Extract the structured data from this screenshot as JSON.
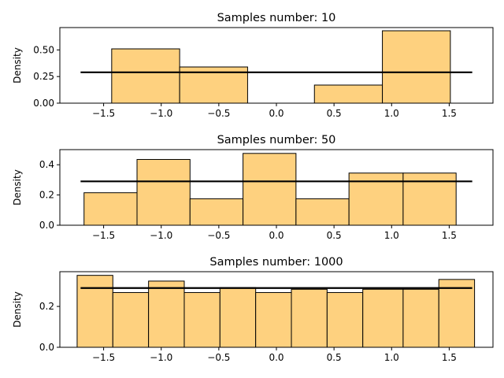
{
  "chart_data": [
    {
      "type": "histogram",
      "title": "Samples number: 10",
      "xlabel": "",
      "ylabel": "Density",
      "xlim": [
        -1.88,
        1.88
      ],
      "ylim": [
        0,
        0.71
      ],
      "xticks": [
        -1.5,
        -1.0,
        -0.5,
        0.0,
        0.5,
        1.0,
        1.5
      ],
      "xtick_labels": [
        "−1.5",
        "−1.0",
        "−0.5",
        "0.0",
        "0.5",
        "1.0",
        "1.5"
      ],
      "yticks": [
        0,
        0.25,
        0.5
      ],
      "ytick_labels": [
        "0.00",
        "0.25",
        "0.50"
      ],
      "bins": [
        {
          "x0": -1.43,
          "x1": -0.84,
          "density": 0.51
        },
        {
          "x0": -0.84,
          "x1": -0.25,
          "density": 0.34
        },
        {
          "x0": -0.25,
          "x1": 0.33,
          "density": 0.0
        },
        {
          "x0": 0.33,
          "x1": 0.92,
          "density": 0.17
        },
        {
          "x0": 0.92,
          "x1": 1.51,
          "density": 0.68
        }
      ],
      "reference_line": {
        "x": [
          -1.7,
          1.7
        ],
        "y": 0.29
      }
    },
    {
      "type": "histogram",
      "title": "Samples number: 50",
      "xlabel": "",
      "ylabel": "Density",
      "xlim": [
        -1.88,
        1.88
      ],
      "ylim": [
        0,
        0.5
      ],
      "xticks": [
        -1.5,
        -1.0,
        -0.5,
        0.0,
        0.5,
        1.0,
        1.5
      ],
      "xtick_labels": [
        "−1.5",
        "−1.0",
        "−0.5",
        "0.0",
        "0.5",
        "1.0",
        "1.5"
      ],
      "yticks": [
        0,
        0.2,
        0.4
      ],
      "ytick_labels": [
        "0.0",
        "0.2",
        "0.4"
      ],
      "bins": [
        {
          "x0": -1.67,
          "x1": -1.21,
          "density": 0.215
        },
        {
          "x0": -1.21,
          "x1": -0.75,
          "density": 0.435
        },
        {
          "x0": -0.75,
          "x1": -0.29,
          "density": 0.175
        },
        {
          "x0": -0.29,
          "x1": 0.17,
          "density": 0.475
        },
        {
          "x0": 0.17,
          "x1": 0.63,
          "density": 0.175
        },
        {
          "x0": 0.63,
          "x1": 1.1,
          "density": 0.345
        },
        {
          "x0": 1.1,
          "x1": 1.56,
          "density": 0.345
        }
      ],
      "reference_line": {
        "x": [
          -1.7,
          1.7
        ],
        "y": 0.29
      }
    },
    {
      "type": "histogram",
      "title": "Samples number: 1000",
      "xlabel": "",
      "ylabel": "Density",
      "xlim": [
        -1.88,
        1.88
      ],
      "ylim": [
        0,
        0.37
      ],
      "xticks": [
        -1.5,
        -1.0,
        -0.5,
        0.0,
        0.5,
        1.0,
        1.5
      ],
      "xtick_labels": [
        "−1.5",
        "−1.0",
        "−0.5",
        "0.0",
        "0.5",
        "1.0",
        "1.5"
      ],
      "yticks": [
        0,
        0.2
      ],
      "ytick_labels": [
        "0.0",
        "0.2"
      ],
      "bins": [
        {
          "x0": -1.73,
          "x1": -1.42,
          "density": 0.352
        },
        {
          "x0": -1.42,
          "x1": -1.11,
          "density": 0.268
        },
        {
          "x0": -1.11,
          "x1": -0.8,
          "density": 0.324
        },
        {
          "x0": -0.8,
          "x1": -0.49,
          "density": 0.268
        },
        {
          "x0": -0.49,
          "x1": -0.18,
          "density": 0.292
        },
        {
          "x0": -0.18,
          "x1": 0.13,
          "density": 0.268
        },
        {
          "x0": 0.13,
          "x1": 0.44,
          "density": 0.284
        },
        {
          "x0": 0.44,
          "x1": 0.75,
          "density": 0.268
        },
        {
          "x0": 0.75,
          "x1": 1.1,
          "density": 0.284
        },
        {
          "x0": 1.1,
          "x1": 1.41,
          "density": 0.284
        },
        {
          "x0": 1.41,
          "x1": 1.72,
          "density": 0.332
        }
      ],
      "reference_line": {
        "x": [
          -1.7,
          1.7
        ],
        "y": 0.29
      }
    }
  ],
  "style": {
    "bar_fill": "#fed17f",
    "bar_edge": "#000000",
    "line_color": "#000000",
    "axes_color": "#000000",
    "background": "#ffffff"
  }
}
